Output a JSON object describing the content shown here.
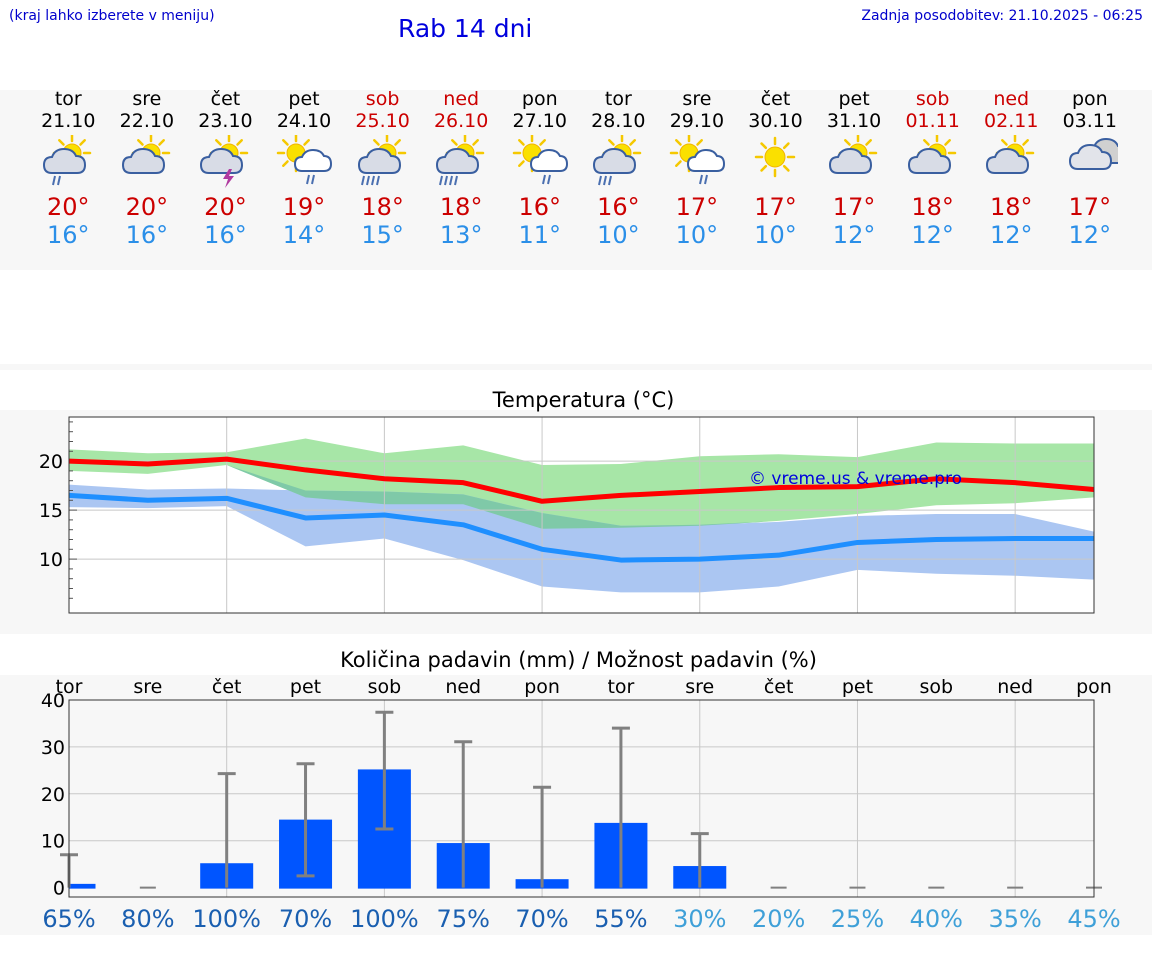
{
  "header": {
    "hint": "(kraj lahko izberete v meniju)",
    "title": "Rab 14 dni",
    "updated": "Zadnja posodobitev: 21.10.2025 - 06:25"
  },
  "days": [
    {
      "name": "tor",
      "date": "21.10",
      "weekend": false,
      "icon": "sun-cloud-light-rain-icon",
      "kind": "rain2",
      "tmax": "20°",
      "tmin": "16°"
    },
    {
      "name": "sre",
      "date": "22.10",
      "weekend": false,
      "icon": "sun-behind-cloud-icon",
      "kind": "cloud",
      "tmax": "20°",
      "tmin": "16°"
    },
    {
      "name": "čet",
      "date": "23.10",
      "weekend": false,
      "icon": "sun-thunderstorm-icon",
      "kind": "thunder",
      "tmax": "20°",
      "tmin": "16°"
    },
    {
      "name": "pet",
      "date": "24.10",
      "weekend": false,
      "icon": "sun-white-cloud-rain-icon",
      "kind": "whiterain",
      "tmax": "19°",
      "tmin": "14°"
    },
    {
      "name": "sob",
      "date": "25.10",
      "weekend": true,
      "icon": "sun-cloud-heavy-rain-icon",
      "kind": "rain4",
      "tmax": "18°",
      "tmin": "15°"
    },
    {
      "name": "ned",
      "date": "26.10",
      "weekend": true,
      "icon": "sun-cloud-heavy-rain-icon",
      "kind": "rain4",
      "tmax": "18°",
      "tmin": "13°"
    },
    {
      "name": "pon",
      "date": "27.10",
      "weekend": false,
      "icon": "sun-white-cloud-rain-icon",
      "kind": "whiterain",
      "tmax": "16°",
      "tmin": "11°"
    },
    {
      "name": "tor",
      "date": "28.10",
      "weekend": false,
      "icon": "sun-cloud-rain-icon",
      "kind": "rain3",
      "tmax": "16°",
      "tmin": "10°"
    },
    {
      "name": "sre",
      "date": "29.10",
      "weekend": false,
      "icon": "sun-white-cloud-rain-icon",
      "kind": "whiterain",
      "tmax": "17°",
      "tmin": "10°"
    },
    {
      "name": "čet",
      "date": "30.10",
      "weekend": false,
      "icon": "sun-icon",
      "kind": "sun",
      "tmax": "17°",
      "tmin": "10°"
    },
    {
      "name": "pet",
      "date": "31.10",
      "weekend": false,
      "icon": "sun-behind-cloud-icon",
      "kind": "cloud",
      "tmax": "17°",
      "tmin": "12°"
    },
    {
      "name": "sob",
      "date": "01.11",
      "weekend": true,
      "icon": "sun-behind-cloud-icon",
      "kind": "cloud",
      "tmax": "18°",
      "tmin": "12°"
    },
    {
      "name": "ned",
      "date": "02.11",
      "weekend": true,
      "icon": "sun-behind-cloud-icon",
      "kind": "cloud",
      "tmax": "18°",
      "tmin": "12°"
    },
    {
      "name": "pon",
      "date": "03.11",
      "weekend": false,
      "icon": "overcast-clouds-icon",
      "kind": "overcast",
      "tmax": "17°",
      "tmin": "12°"
    }
  ],
  "colors": {
    "max_line": "#ff0000",
    "min_line": "#1f8fff",
    "max_band": "#a7e6a7",
    "min_band": "#abc6f2",
    "overlap_band": "#7fc9a8",
    "precip_bar": "#0055ff",
    "error_bar": "#808080",
    "pct_dark": "#1a5fb0",
    "pct_light": "#3fa0d8"
  },
  "chart_data": [
    {
      "type": "line",
      "title": "Temperatura (°C)",
      "watermark": "© vreme.us & vreme.pro",
      "x": [
        0,
        1,
        2,
        3,
        4,
        5,
        6,
        7,
        8,
        9,
        10,
        11,
        12,
        13
      ],
      "ylim": [
        4.5,
        24.5
      ],
      "yticks": [
        10,
        15,
        20
      ],
      "series": [
        {
          "name": "max",
          "values": [
            20,
            19.7,
            20.2,
            19.1,
            18.2,
            17.8,
            15.9,
            16.5,
            16.9,
            17.3,
            17.4,
            18.2,
            17.8,
            17.1
          ]
        },
        {
          "name": "min",
          "values": [
            16.5,
            16,
            16.2,
            14.2,
            14.5,
            13.5,
            11,
            9.9,
            10,
            10.4,
            11.7,
            12,
            12.1,
            12.1
          ]
        },
        {
          "name": "max_range",
          "low": [
            19,
            18.7,
            19.6,
            16.3,
            15.6,
            15.6,
            13.1,
            13.2,
            13.4,
            13.9,
            14.6,
            15.5,
            15.7,
            16.3
          ],
          "high": [
            21.2,
            20.8,
            20.9,
            22.3,
            20.8,
            21.6,
            19.6,
            19.7,
            20.5,
            20.7,
            20.4,
            21.9,
            21.8,
            21.8
          ]
        },
        {
          "name": "min_range",
          "low": [
            15.3,
            15.2,
            15.4,
            11.3,
            12.1,
            9.9,
            7.2,
            6.6,
            6.6,
            7.2,
            8.9,
            8.5,
            8.3,
            7.9
          ],
          "high": [
            17.6,
            17.1,
            17.2,
            17,
            16.9,
            16.6,
            14.7,
            13.4,
            13.5,
            13.8,
            14.4,
            14.6,
            14.6,
            12.8
          ]
        }
      ]
    },
    {
      "type": "bar",
      "title": "Količina padavin (mm) / Možnost padavin (%)",
      "categories": [
        "tor",
        "sre",
        "čet",
        "pet",
        "sob",
        "ned",
        "pon",
        "tor",
        "sre",
        "čet",
        "pet",
        "sob",
        "ned",
        "pon"
      ],
      "values": [
        0.8,
        0,
        5.2,
        14.5,
        25.2,
        9.5,
        1.8,
        13.8,
        4.6,
        0,
        0,
        0,
        0,
        0
      ],
      "err_low": [
        0,
        0,
        0,
        2.5,
        12.5,
        0,
        0,
        0,
        0,
        0,
        0,
        0,
        0,
        0
      ],
      "err_high": [
        7,
        0,
        24.3,
        26.4,
        37.4,
        31.1,
        21.4,
        34,
        11.5,
        0,
        0,
        0,
        0,
        0
      ],
      "ylim": [
        -2,
        40
      ],
      "yticks": [
        0,
        10,
        20,
        30,
        40
      ],
      "probability": [
        "65%",
        "80%",
        "100%",
        "70%",
        "100%",
        "75%",
        "70%",
        "55%",
        "30%",
        "20%",
        "25%",
        "40%",
        "35%",
        "45%"
      ]
    }
  ]
}
